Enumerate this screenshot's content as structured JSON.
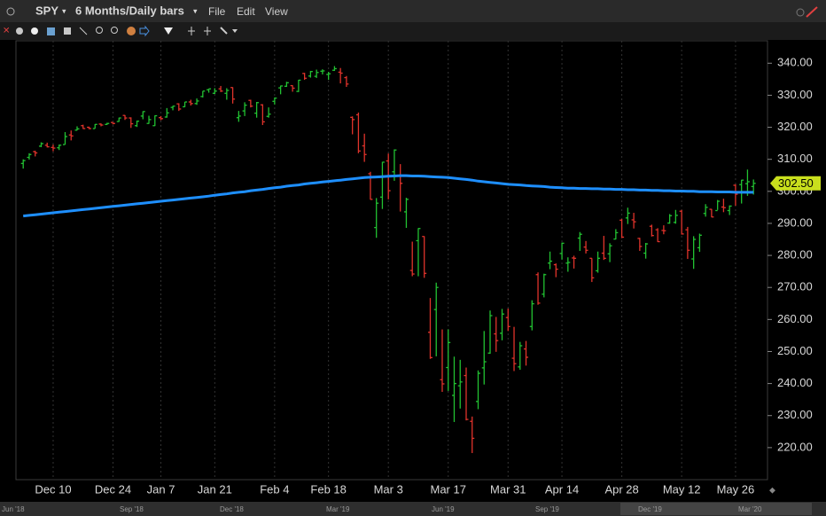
{
  "window": {
    "symbol": "SPY",
    "period": "6 Months/Daily bars",
    "menu": [
      "File",
      "Edit",
      "View"
    ]
  },
  "chart_data": {
    "type": "ohlc",
    "categories": [
      null,
      null,
      null,
      null,
      null,
      "Dec 10",
      null,
      null,
      null,
      null,
      null,
      null,
      null,
      null,
      null,
      "Dec 24",
      null,
      null,
      null,
      null,
      null,
      null,
      null,
      "Jan 7",
      null,
      null,
      null,
      null,
      null,
      null,
      null,
      null,
      "Jan 21",
      null,
      null,
      null,
      null,
      null,
      null,
      null,
      null,
      null,
      "Feb 4",
      null,
      null,
      null,
      null,
      null,
      null,
      null,
      null,
      "Feb 18",
      null,
      null,
      null,
      null,
      null,
      null,
      null,
      null,
      null,
      "Mar 3",
      null,
      null,
      null,
      null,
      null,
      null,
      null,
      null,
      null,
      "Mar 17",
      null,
      null,
      null,
      null,
      null,
      null,
      null,
      null,
      null,
      "Mar 31",
      null,
      null,
      null,
      null,
      null,
      null,
      null,
      null,
      "Apr 14",
      null,
      null,
      null,
      null,
      null,
      null,
      null,
      null,
      null,
      "Apr 28",
      null,
      null,
      null,
      null,
      null,
      null,
      null,
      null,
      null,
      "May 12",
      null,
      null,
      null,
      null,
      null,
      null,
      null,
      null,
      "May 26",
      null,
      null,
      null
    ],
    "ohlc": {
      "open": [
        308.7,
        310.6,
        312.4,
        314.1,
        314.4,
        313.7,
        313.6,
        314.6,
        317.6,
        319.1,
        320.5,
        320.0,
        319.6,
        321.0,
        320.9,
        321.5,
        321.8,
        323.7,
        322.9,
        320.5,
        323.5,
        321.2,
        320.5,
        323.0,
        323.2,
        326.2,
        327.3,
        326.4,
        327.9,
        327.4,
        329.6,
        331.7,
        330.6,
        332.0,
        330.6,
        332.4,
        323.0,
        325.1,
        328.4,
        324.4,
        327.0,
        323.4,
        328.1,
        332.3,
        332.8,
        333.0,
        331.2,
        336.8,
        336.0,
        335.9,
        337.5,
        336.5,
        337.8,
        337.2,
        335.5,
        323.1,
        323.9,
        314.2,
        305.5,
        288.7,
        298.2,
        309.5,
        306.1,
        304.9,
        293.6,
        275.3,
        284.6,
        285.9,
        256.0,
        263.1,
        241.2,
        245.0,
        236.3,
        239.3,
        242.5,
        228.2,
        234.4,
        244.9,
        249.5,
        255.5,
        255.7,
        260.6,
        247.9,
        245.2,
        250.8,
        257.8,
        274.0,
        267.9,
        277.6,
        277.1,
        280.6,
        277.6,
        279.2,
        285.4,
        282.6,
        279.1,
        275.2,
        280.7,
        280.5,
        285.1,
        291.0,
        291.7,
        291.1,
        285.3,
        280.7,
        289.1,
        288.0,
        287.8,
        290.1,
        290.3,
        293.8,
        288.0,
        278.9,
        282.4,
        293.1,
        294.4,
        294.0,
        295.1,
        294.0,
        301.9,
        302.1,
        302.4,
        301.5
      ],
      "high": [
        310.0,
        311.9,
        312.7,
        315.3,
        315.2,
        314.6,
        314.6,
        318.5,
        319.0,
        320.3,
        320.8,
        320.2,
        321.0,
        321.2,
        321.4,
        321.5,
        323.0,
        323.8,
        323.1,
        322.1,
        325.0,
        323.6,
        323.7,
        323.5,
        326.0,
        326.7,
        327.5,
        327.9,
        328.6,
        329.0,
        331.3,
        332.0,
        332.2,
        332.9,
        332.2,
        332.5,
        325.1,
        327.8,
        328.6,
        327.9,
        327.2,
        326.2,
        329.3,
        333.0,
        334.2,
        333.1,
        334.8,
        337.0,
        337.6,
        338.0,
        338.1,
        337.3,
        339.1,
        338.5,
        336.0,
        323.4,
        324.6,
        318.0,
        306.1,
        297.9,
        309.2,
        311.8,
        313.1,
        308.5,
        298.0,
        284.3,
        288.5,
        286.0,
        266.7,
        271.5,
        256.9,
        256.9,
        248.4,
        247.4,
        245.0,
        229.7,
        244.1,
        256.4,
        262.8,
        260.8,
        263.3,
        263.4,
        257.7,
        253.0,
        253.3,
        266.0,
        274.7,
        274.3,
        281.2,
        277.5,
        284.0,
        279.4,
        279.9,
        287.3,
        284.5,
        279.1,
        281.2,
        286.1,
        283.8,
        288.2,
        291.4,
        294.9,
        293.3,
        285.5,
        283.9,
        289.6,
        288.5,
        289.4,
        292.9,
        294.2,
        294.2,
        288.9,
        286.0,
        286.8,
        296.0,
        294.5,
        297.3,
        297.7,
        295.6,
        302.2,
        303.6,
        306.8,
        303.7
      ],
      "low": [
        307.1,
        309.9,
        310.9,
        313.8,
        313.7,
        312.5,
        312.9,
        314.6,
        315.9,
        319.0,
        319.5,
        319.4,
        319.6,
        320.3,
        320.7,
        320.9,
        321.7,
        322.3,
        319.8,
        320.1,
        322.5,
        321.1,
        320.4,
        322.2,
        323.0,
        325.3,
        325.1,
        326.3,
        326.8,
        327.0,
        329.3,
        330.8,
        330.4,
        331.0,
        328.6,
        327.4,
        321.7,
        323.5,
        326.2,
        323.0,
        320.7,
        323.0,
        327.1,
        330.3,
        332.6,
        331.1,
        331.0,
        334.8,
        335.5,
        335.4,
        336.5,
        334.8,
        337.6,
        333.7,
        332.6,
        317.8,
        311.9,
        309.2,
        297.4,
        285.5,
        294.5,
        297.5,
        303.3,
        293.7,
        288.6,
        273.5,
        273.5,
        273.0,
        247.7,
        248.5,
        237.4,
        237.7,
        228.0,
        232.2,
        228.5,
        218.3,
        232.0,
        239.7,
        249.3,
        249.9,
        253.5,
        256.4,
        243.9,
        244.3,
        245.6,
        256.6,
        264.6,
        266.9,
        275.7,
        273.2,
        278.7,
        274.9,
        275.9,
        281.4,
        280.6,
        271.7,
        274.6,
        278.6,
        277.9,
        285.0,
        285.4,
        289.8,
        288.4,
        281.4,
        279.0,
        285.9,
        284.2,
        286.6,
        289.9,
        289.9,
        286.5,
        278.9,
        275.8,
        281.1,
        292.1,
        291.9,
        294.2,
        293.5,
        292.6,
        295.5,
        296.2,
        298.6,
        299.0
      ],
      "close": [
        309.6,
        311.5,
        312.0,
        314.9,
        313.9,
        313.5,
        314.4,
        317.1,
        317.3,
        319.5,
        319.6,
        319.6,
        320.9,
        320.7,
        321.2,
        321.2,
        322.9,
        322.9,
        321.1,
        321.9,
        324.9,
        322.4,
        323.6,
        322.7,
        324.5,
        326.6,
        325.7,
        327.9,
        327.4,
        328.2,
        331.3,
        332.0,
        331.3,
        331.3,
        331.5,
        328.8,
        323.5,
        326.9,
        326.6,
        327.7,
        321.7,
        324.1,
        329.1,
        332.9,
        333.9,
        332.2,
        334.7,
        335.3,
        337.4,
        337.1,
        337.6,
        336.7,
        338.3,
        336.9,
        333.5,
        322.4,
        312.6,
        311.5,
        297.5,
        296.3,
        309.1,
        300.2,
        312.9,
        302.5,
        297.5,
        274.2,
        288.4,
        274.4,
        248.1,
        270.0,
        239.9,
        252.8,
        240.0,
        240.5,
        228.8,
        222.9,
        243.2,
        246.8,
        261.2,
        253.4,
        261.7,
        257.8,
        246.2,
        251.8,
        248.2,
        264.9,
        265.1,
        274.0,
        278.2,
        275.7,
        283.8,
        277.8,
        279.1,
        286.6,
        281.6,
        273.0,
        279.1,
        279.1,
        283.0,
        287.1,
        285.7,
        293.2,
        290.5,
        282.8,
        283.6,
        286.2,
        284.3,
        287.7,
        292.4,
        292.5,
        286.7,
        281.6,
        285.0,
        286.3,
        295.0,
        292.0,
        296.9,
        294.9,
        295.4,
        299.1,
        303.5,
        303.0,
        302.5
      ],
      "up_color": "#22c232",
      "down_color": "#e0332b"
    },
    "moving_average": {
      "color": "#1e8fff",
      "values": [
        292.3,
        292.5,
        292.7,
        292.9,
        293.1,
        293.3,
        293.5,
        293.7,
        293.9,
        294.1,
        294.3,
        294.5,
        294.7,
        294.9,
        295.1,
        295.3,
        295.5,
        295.7,
        295.9,
        296.1,
        296.3,
        296.5,
        296.7,
        296.9,
        297.1,
        297.3,
        297.5,
        297.7,
        297.9,
        298.1,
        298.3,
        298.5,
        298.8,
        299.0,
        299.2,
        299.5,
        299.7,
        299.9,
        300.2,
        300.4,
        300.6,
        300.9,
        301.1,
        301.3,
        301.6,
        301.8,
        302.0,
        302.3,
        302.5,
        302.7,
        302.9,
        303.1,
        303.3,
        303.5,
        303.7,
        303.9,
        304.1,
        304.3,
        304.4,
        304.5,
        304.6,
        304.7,
        304.8,
        304.9,
        304.9,
        304.8,
        304.8,
        304.7,
        304.6,
        304.5,
        304.4,
        304.3,
        304.1,
        303.9,
        303.7,
        303.5,
        303.2,
        303.0,
        302.8,
        302.6,
        302.4,
        302.2,
        302.1,
        302.0,
        301.8,
        301.7,
        301.6,
        301.5,
        301.3,
        301.2,
        301.1,
        301.0,
        301.0,
        300.9,
        300.9,
        300.8,
        300.8,
        300.7,
        300.7,
        300.6,
        300.6,
        300.5,
        300.5,
        300.4,
        300.4,
        300.3,
        300.3,
        300.2,
        300.2,
        300.1,
        300.1,
        300.0,
        300.0,
        299.9,
        299.9,
        299.9,
        299.8,
        299.8,
        299.8,
        299.7,
        299.7,
        299.7,
        299.7
      ]
    },
    "last_price": {
      "value": 302.5,
      "label": "302.50"
    },
    "ylim": [
      210,
      347
    ],
    "yticks": [
      {
        "value": 220,
        "label": "220.00"
      },
      {
        "value": 230,
        "label": "230.00"
      },
      {
        "value": 240,
        "label": "240.00"
      },
      {
        "value": 250,
        "label": "250.00"
      },
      {
        "value": 260,
        "label": "260.00"
      },
      {
        "value": 270,
        "label": "270.00"
      },
      {
        "value": 280,
        "label": "280.00"
      },
      {
        "value": 290,
        "label": "290.00"
      },
      {
        "value": 300,
        "label": "300.00"
      },
      {
        "value": 310,
        "label": "310.00"
      },
      {
        "value": 320,
        "label": "320.00"
      },
      {
        "value": 330,
        "label": "330.00"
      },
      {
        "value": 340,
        "label": "340.00"
      }
    ]
  },
  "navigator": {
    "labels": [
      "Jun '18",
      "Sep '18",
      "Dec '18",
      "Mar '19",
      "Jun '19",
      "Sep '19",
      "Dec '19",
      "Mar '20"
    ]
  }
}
